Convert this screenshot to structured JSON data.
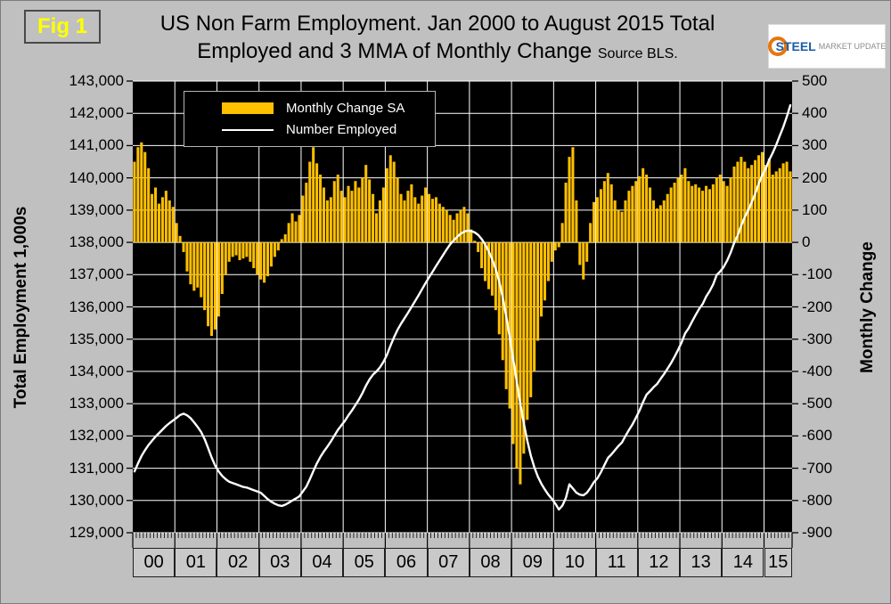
{
  "fig_label": "Fig 1",
  "title": {
    "line1": "US Non Farm Employment. Jan 2000 to August 2015 Total",
    "line2": "Employed and 3 MMA of Monthly Change",
    "source": "Source BLS."
  },
  "logo": {
    "primary": "STEEL",
    "secondary": "MARKET UPDATE"
  },
  "legend": {
    "items": [
      {
        "label": "Monthly Change SA",
        "swatch": "bar",
        "color": "#FFC000"
      },
      {
        "label": "Number Employed",
        "swatch": "line",
        "color": "#FFFFFF"
      }
    ]
  },
  "colors": {
    "background": "#C0C0C0",
    "bars": "#FFC000",
    "line": "#FFFFFF",
    "fig_label": "#FFFF00",
    "plot_background": "#000000"
  },
  "chart_data": {
    "type": "bar",
    "subtype": "combo-bar-line",
    "title": "US Non Farm Employment. Jan 2000 to August 2015 Total Employed and 3 MMA of Monthly Change",
    "source": "BLS",
    "x_axis": {
      "unit": "month",
      "start": "2000-01",
      "end": "2015-08",
      "year_labels": [
        "00",
        "01",
        "02",
        "03",
        "04",
        "05",
        "06",
        "07",
        "08",
        "09",
        "10",
        "11",
        "12",
        "13",
        "14",
        "15"
      ],
      "months_per_year": [
        12,
        12,
        12,
        12,
        12,
        12,
        12,
        12,
        12,
        12,
        12,
        12,
        12,
        12,
        12,
        8
      ]
    },
    "left_axis": {
      "label": "Total Employment 1,000s",
      "min": 129000,
      "max": 143000,
      "step": 1000,
      "tick_labels": [
        "143,000",
        "142,000",
        "141,000",
        "140,000",
        "139,000",
        "138,000",
        "137,000",
        "136,000",
        "135,000",
        "134,000",
        "133,000",
        "132,000",
        "131,000",
        "130,000",
        "129,000"
      ]
    },
    "right_axis": {
      "label": "Monthly Change",
      "min": -900,
      "max": 500,
      "step": 100,
      "tick_labels": [
        "500",
        "400",
        "300",
        "200",
        "100",
        "0",
        "-100",
        "-200",
        "-300",
        "-400",
        "-500",
        "-600",
        "-700",
        "-800",
        "-900"
      ]
    },
    "plot": {
      "background": "#000000",
      "grid_color": "#FFFFFF"
    },
    "legend_position": "top-left-inside",
    "grid": true,
    "series": [
      {
        "name": "Monthly Change SA",
        "type": "bar",
        "axis": "right",
        "color": "#FFC000",
        "values": [
          250,
          295,
          310,
          280,
          230,
          150,
          170,
          120,
          140,
          160,
          130,
          110,
          60,
          20,
          -30,
          -90,
          -130,
          -150,
          -140,
          -170,
          -210,
          -260,
          -290,
          -270,
          -230,
          -160,
          -100,
          -60,
          -45,
          -40,
          -55,
          -50,
          -45,
          -60,
          -80,
          -100,
          -115,
          -125,
          -105,
          -75,
          -45,
          -25,
          10,
          25,
          60,
          90,
          65,
          85,
          145,
          185,
          250,
          295,
          245,
          210,
          170,
          130,
          140,
          190,
          210,
          160,
          140,
          175,
          160,
          190,
          170,
          200,
          240,
          195,
          150,
          90,
          130,
          170,
          230,
          270,
          250,
          200,
          150,
          130,
          160,
          180,
          140,
          120,
          145,
          170,
          150,
          135,
          140,
          120,
          110,
          100,
          85,
          70,
          90,
          100,
          110,
          90,
          40,
          5,
          -30,
          -80,
          -120,
          -145,
          -165,
          -210,
          -285,
          -365,
          -455,
          -515,
          -625,
          -700,
          -750,
          -655,
          -550,
          -480,
          -400,
          -305,
          -230,
          -180,
          -120,
          -60,
          -25,
          -15,
          60,
          185,
          265,
          295,
          130,
          -70,
          -115,
          -60,
          60,
          125,
          140,
          165,
          190,
          215,
          180,
          130,
          100,
          95,
          130,
          160,
          175,
          190,
          205,
          230,
          210,
          170,
          130,
          105,
          115,
          130,
          150,
          170,
          185,
          200,
          210,
          230,
          190,
          175,
          180,
          170,
          160,
          175,
          165,
          180,
          200,
          210,
          190,
          175,
          200,
          235,
          250,
          265,
          250,
          230,
          240,
          255,
          270,
          280,
          240,
          260,
          210,
          220,
          230,
          245,
          250,
          220
        ]
      },
      {
        "name": "Number Employed",
        "type": "line",
        "axis": "left",
        "color": "#FFFFFF",
        "values": [
          130900,
          131150,
          131380,
          131560,
          131720,
          131850,
          131980,
          132090,
          132200,
          132310,
          132400,
          132480,
          132560,
          132650,
          132690,
          132640,
          132550,
          132420,
          132280,
          132120,
          131900,
          131620,
          131330,
          131080,
          130900,
          130760,
          130660,
          130580,
          130540,
          130500,
          130460,
          130420,
          130400,
          130360,
          130320,
          130280,
          130240,
          130140,
          130040,
          129960,
          129900,
          129850,
          129830,
          129870,
          129930,
          130000,
          130060,
          130130,
          130280,
          130430,
          130660,
          130910,
          131150,
          131350,
          131520,
          131670,
          131830,
          132010,
          132190,
          132330,
          132470,
          132640,
          132790,
          132960,
          133130,
          133330,
          133560,
          133750,
          133900,
          134000,
          134130,
          134300,
          134520,
          134800,
          135060,
          135290,
          135480,
          135650,
          135820,
          136000,
          136180,
          136360,
          136550,
          136740,
          136920,
          137090,
          137270,
          137440,
          137610,
          137780,
          137940,
          138060,
          138170,
          138270,
          138330,
          138365,
          138350,
          138310,
          138230,
          138100,
          137930,
          137720,
          137470,
          137170,
          136780,
          136290,
          135700,
          135050,
          134370,
          133680,
          133010,
          132390,
          131850,
          131390,
          131030,
          130740,
          130520,
          130340,
          130180,
          130050,
          129900,
          129720,
          129840,
          130080,
          130500,
          130370,
          130240,
          130180,
          130160,
          130240,
          130390,
          130570,
          130690,
          130880,
          131100,
          131320,
          131430,
          131560,
          131690,
          131800,
          132000,
          132190,
          132360,
          132570,
          132790,
          133050,
          133280,
          133390,
          133510,
          133610,
          133770,
          133920,
          134090,
          134260,
          134460,
          134670,
          134900,
          135180,
          135340,
          135550,
          135750,
          135940,
          136090,
          136320,
          136490,
          136700,
          136990,
          137100,
          137240,
          137440,
          137690,
          137990,
          138220,
          138520,
          138780,
          139000,
          139250,
          139510,
          139820,
          140090,
          140290,
          140560,
          140780,
          141030,
          141310,
          141580,
          141900,
          142250
        ]
      }
    ]
  }
}
